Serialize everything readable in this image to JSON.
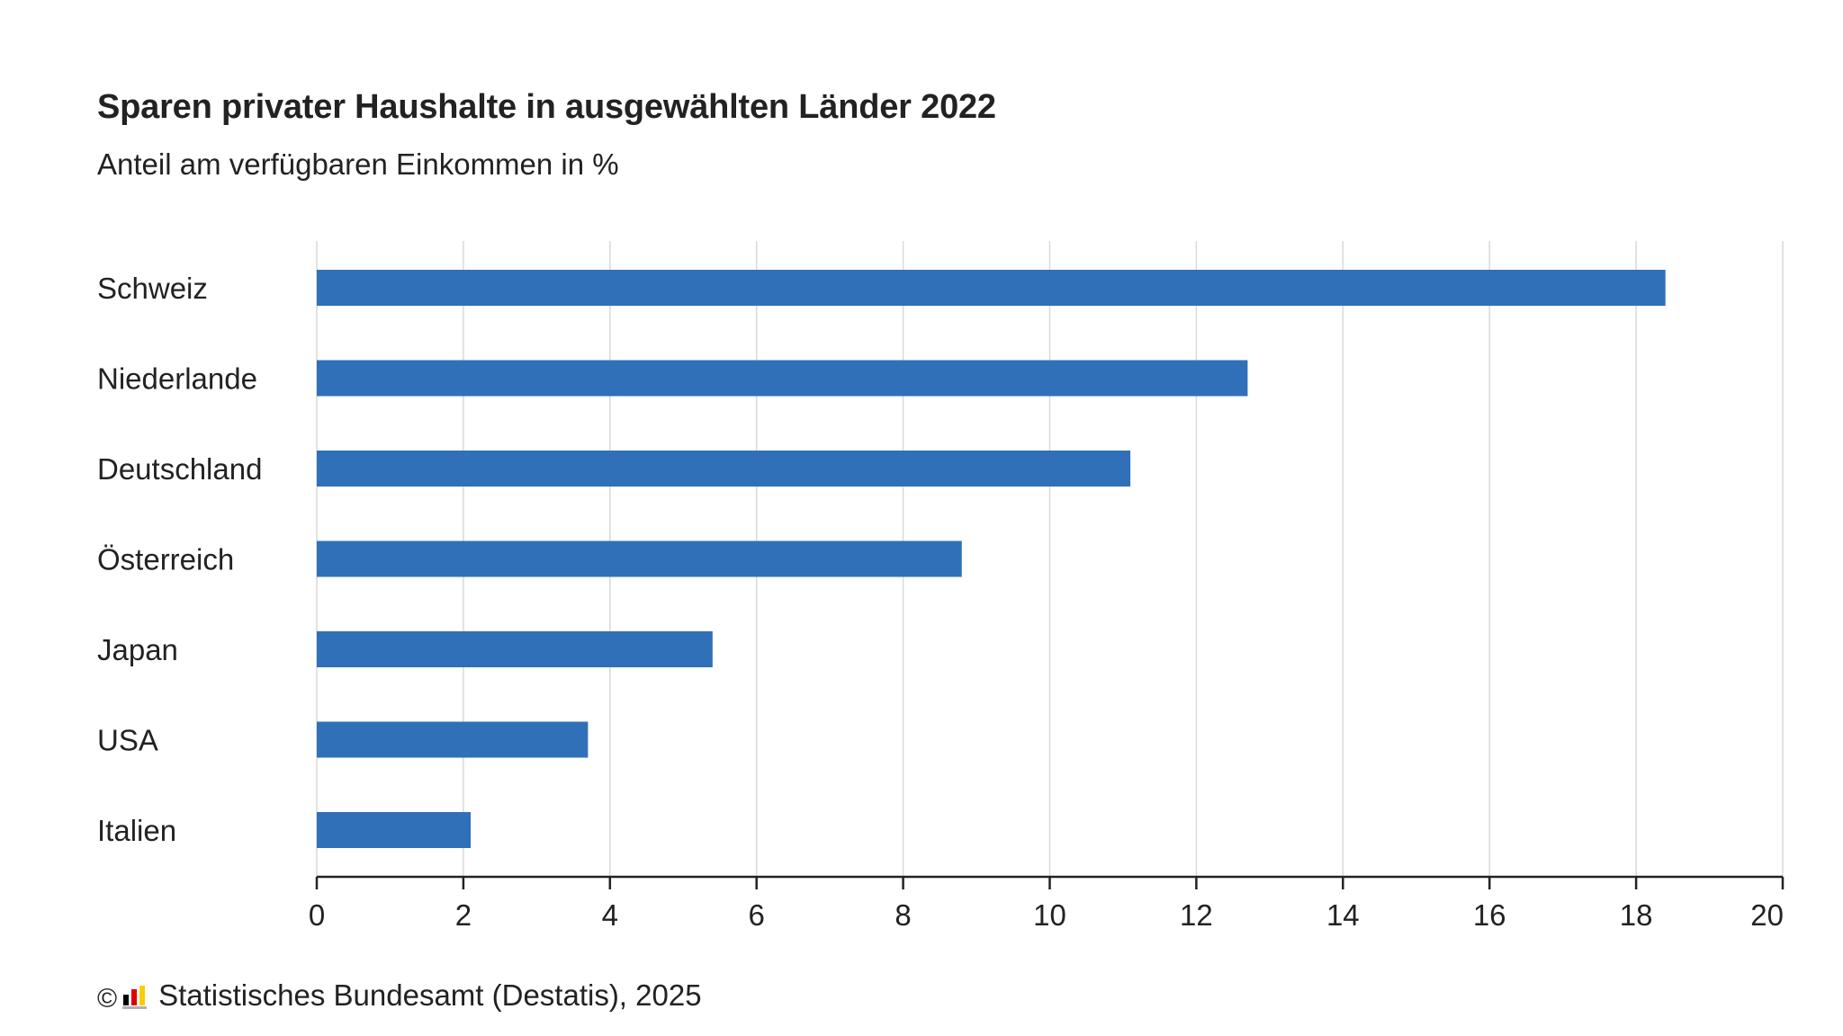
{
  "chart_data": {
    "type": "bar",
    "orientation": "horizontal",
    "title": "Sparen privater Haushalte in ausgewählten Länder 2022",
    "subtitle": "Anteil am verfügbaren Einkommen in %",
    "categories": [
      "Schweiz",
      "Niederlande",
      "Deutschland",
      "Österreich",
      "Japan",
      "USA",
      "Italien"
    ],
    "values": [
      18.4,
      12.7,
      11.1,
      8.8,
      5.4,
      3.7,
      2.1
    ],
    "xlim": [
      0,
      20
    ],
    "xticks": [
      "0",
      "2",
      "4",
      "6",
      "8",
      "10",
      "12",
      "14",
      "16",
      "18",
      "20"
    ],
    "xlabel": "",
    "ylabel": "",
    "grid": "vertical",
    "legend": "none",
    "bar_color": "#3070b8",
    "grid_color": "#d9d9d9",
    "axis_color": "#222222"
  },
  "footer": {
    "copyright_symbol": "©",
    "source": "Statistisches Bundesamt (Destatis), 2025",
    "logo_icon": "destatis-bar-logo-icon"
  }
}
